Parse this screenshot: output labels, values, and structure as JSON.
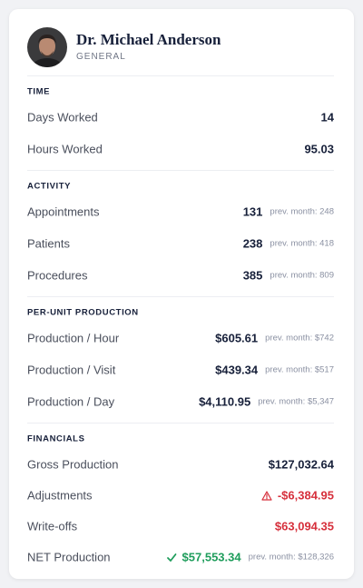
{
  "profile": {
    "name": "Dr. Michael Anderson",
    "role": "GENERAL"
  },
  "sections": [
    {
      "title": "TIME",
      "rows": [
        {
          "label": "Days Worked",
          "value": "14"
        },
        {
          "label": "Hours Worked",
          "value": "95.03"
        }
      ]
    },
    {
      "title": "ACTIVITY",
      "rows": [
        {
          "label": "Appointments",
          "value": "131",
          "prev": "prev. month: 248"
        },
        {
          "label": "Patients",
          "value": "238",
          "prev": "prev. month: 418"
        },
        {
          "label": "Procedures",
          "value": "385",
          "prev": "prev. month: 809"
        }
      ]
    },
    {
      "title": "PER-UNIT PRODUCTION",
      "rows": [
        {
          "label": "Production / Hour",
          "value": "$605.61",
          "prev": "prev. month: $742"
        },
        {
          "label": "Production / Visit",
          "value": "$439.34",
          "prev": "prev. month: $517"
        },
        {
          "label": "Production / Day",
          "value": "$4,110.95",
          "prev": "prev. month: $5,347"
        }
      ]
    },
    {
      "title": "FINANCIALS",
      "rows": [
        {
          "label": "Gross Production",
          "value": "$127,032.64"
        },
        {
          "label": "Adjustments",
          "value": "-$6,384.95",
          "color": "#d6303c",
          "icon": "warning"
        },
        {
          "label": "Write-offs",
          "value": "$63,094.35",
          "color": "#d6303c"
        },
        {
          "label": "NET Production",
          "value": "$57,553.34",
          "prev": "prev. month: $128,326",
          "color": "#1f9d5c",
          "icon": "check"
        }
      ]
    }
  ]
}
